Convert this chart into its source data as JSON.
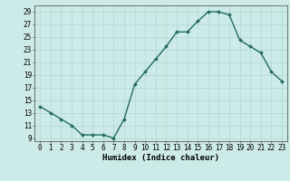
{
  "xlabel": "Humidex (Indice chaleur)",
  "x_values": [
    0,
    1,
    2,
    3,
    4,
    5,
    6,
    7,
    8,
    9,
    10,
    11,
    12,
    13,
    14,
    15,
    16,
    17,
    18,
    19,
    20,
    21,
    22,
    23
  ],
  "y_values": [
    14,
    13,
    12,
    11,
    9.5,
    9.5,
    9.5,
    9,
    12,
    17.5,
    19.5,
    21.5,
    23.5,
    25.8,
    25.8,
    27.5,
    29,
    29,
    28.5,
    24.5,
    23.5,
    22.5,
    19.5,
    18
  ],
  "line_color": "#236b5e",
  "marker": "D",
  "marker_size": 2.0,
  "bg_color": "#cceae7",
  "grid_color": "#b0d8d4",
  "ylim": [
    8.5,
    30
  ],
  "yticks": [
    9,
    11,
    13,
    15,
    17,
    19,
    21,
    23,
    25,
    27,
    29
  ],
  "xlim": [
    -0.5,
    23.5
  ],
  "xticks": [
    0,
    1,
    2,
    3,
    4,
    5,
    6,
    7,
    8,
    9,
    10,
    11,
    12,
    13,
    14,
    15,
    16,
    17,
    18,
    19,
    20,
    21,
    22,
    23
  ],
  "tick_label_fontsize": 5.5,
  "xlabel_fontsize": 6.5,
  "line_width": 1.0
}
